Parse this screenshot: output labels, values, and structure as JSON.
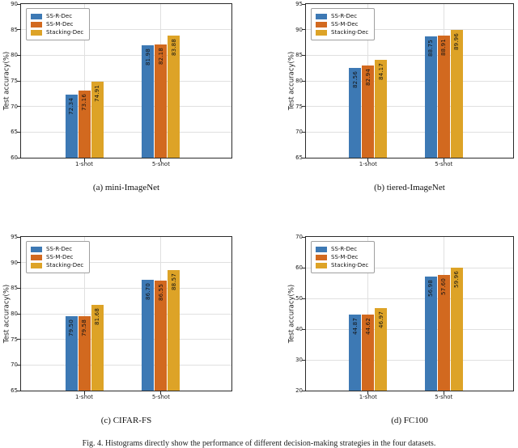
{
  "figure_caption": "Fig. 4. Histograms directly show the performance of different decision-making strategies in the four datasets.",
  "legend_labels": [
    "SS-R-Dec",
    "SS-M-Dec",
    "Stacking-Dec"
  ],
  "colors": {
    "ss_r_dec": "#3D79B4",
    "ss_m_dec": "#D2691F",
    "stacking_dec": "#DDA327",
    "grid": "#E0E0E0",
    "spine": "#2A2A2A"
  },
  "chart_data": [
    {
      "type": "bar",
      "caption": "(a) mini-ImageNet",
      "ylabel": "Test accuracy(%)",
      "ylim": [
        60,
        90
      ],
      "yticks": [
        60,
        65,
        70,
        75,
        80,
        85,
        90
      ],
      "categories": [
        "1-shot",
        "5-shot"
      ],
      "grid": true,
      "legend_position": "upper-left",
      "series": [
        {
          "name": "SS-R-Dec",
          "color": "#3D79B4",
          "values": [
            72.34,
            81.98
          ]
        },
        {
          "name": "SS-M-Dec",
          "color": "#D2691F",
          "values": [
            73.16,
            82.18
          ]
        },
        {
          "name": "Stacking-Dec",
          "color": "#DDA327",
          "values": [
            74.91,
            83.88
          ]
        }
      ]
    },
    {
      "type": "bar",
      "caption": "(b) tiered-ImageNet",
      "ylabel": "Test accuracy(%)",
      "ylim": [
        65,
        95
      ],
      "yticks": [
        65,
        70,
        75,
        80,
        85,
        90,
        95
      ],
      "categories": [
        "1-shot",
        "5-shot"
      ],
      "grid": true,
      "legend_position": "upper-left",
      "series": [
        {
          "name": "SS-R-Dec",
          "color": "#3D79B4",
          "values": [
            82.56,
            88.75
          ]
        },
        {
          "name": "SS-M-Dec",
          "color": "#D2691F",
          "values": [
            82.94,
            88.91
          ]
        },
        {
          "name": "Stacking-Dec",
          "color": "#DDA327",
          "values": [
            84.17,
            89.96
          ]
        }
      ]
    },
    {
      "type": "bar",
      "caption": "(c) CIFAR-FS",
      "ylabel": "Test accuracy(%)",
      "ylim": [
        65,
        95
      ],
      "yticks": [
        65,
        70,
        75,
        80,
        85,
        90,
        95
      ],
      "categories": [
        "1-shot",
        "5-shot"
      ],
      "grid": true,
      "legend_position": "upper-left",
      "series": [
        {
          "name": "SS-R-Dec",
          "color": "#3D79B4",
          "values": [
            79.5,
            86.7
          ]
        },
        {
          "name": "SS-M-Dec",
          "color": "#D2691F",
          "values": [
            79.58,
            86.55
          ]
        },
        {
          "name": "Stacking-Dec",
          "color": "#DDA327",
          "values": [
            81.68,
            88.57
          ]
        }
      ]
    },
    {
      "type": "bar",
      "caption": "(d) FC100",
      "ylabel": "Test accuracy(%)",
      "ylim": [
        20,
        70
      ],
      "yticks": [
        20,
        30,
        40,
        50,
        60,
        70
      ],
      "categories": [
        "1-shot",
        "5-shot"
      ],
      "grid": true,
      "legend_position": "upper-left",
      "series": [
        {
          "name": "SS-R-Dec",
          "color": "#3D79B4",
          "values": [
            44.87,
            56.98
          ]
        },
        {
          "name": "SS-M-Dec",
          "color": "#D2691F",
          "values": [
            44.62,
            57.6
          ]
        },
        {
          "name": "Stacking-Dec",
          "color": "#DDA327",
          "values": [
            46.97,
            59.96
          ]
        }
      ]
    }
  ]
}
